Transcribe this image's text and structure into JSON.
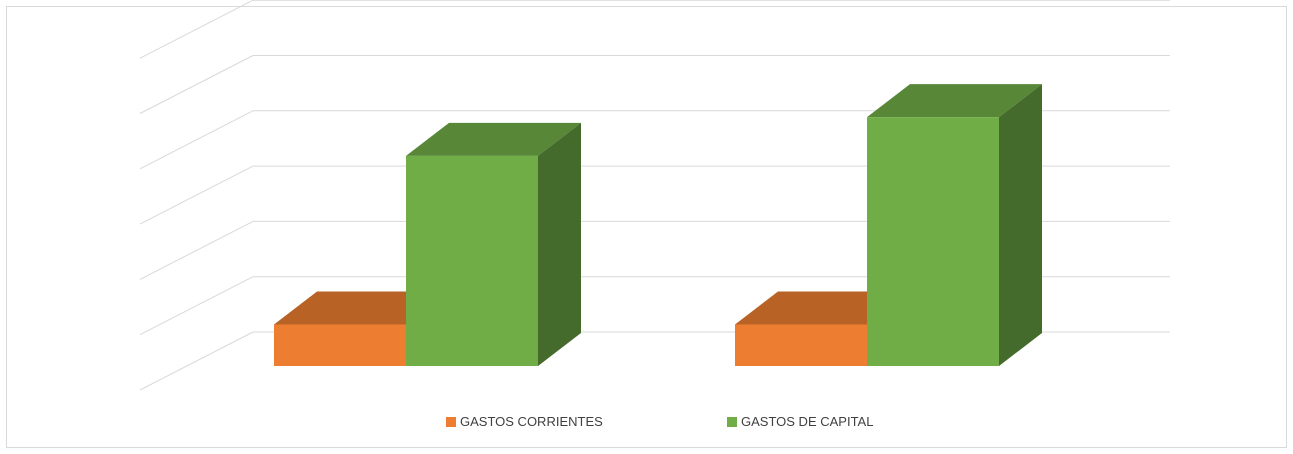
{
  "chart_data": {
    "type": "bar",
    "style": "3d-clustered-column",
    "categories": [
      "",
      ""
    ],
    "series": [
      {
        "name": "GASTOS CORRIENTES",
        "values": [
          0.75,
          0.75
        ],
        "color": "#ED7D31"
      },
      {
        "name": "GASTOS DE CAPITAL",
        "values": [
          3.8,
          4.5
        ],
        "color": "#70AD47"
      }
    ],
    "ylim": [
      0,
      6
    ],
    "grid": true,
    "legend_position": "bottom",
    "title": "",
    "xlabel": "",
    "ylabel": ""
  }
}
